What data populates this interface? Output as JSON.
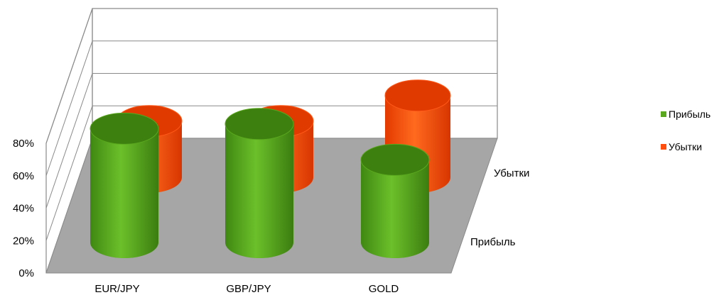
{
  "chart_data": {
    "type": "bar",
    "style": "3d-cylinder",
    "categories": [
      "EUR/JPY",
      "GBP/JPY",
      "GOLD"
    ],
    "series": [
      {
        "name": "Прибыль",
        "values": [
          73,
          76,
          53
        ],
        "color": "#5aa81e"
      },
      {
        "name": "Убытки",
        "values": [
          44,
          44,
          64
        ],
        "color": "#ff4e0e"
      }
    ],
    "y_ticks": [
      "0%",
      "20%",
      "40%",
      "60%",
      "80%"
    ],
    "ylim": [
      0,
      80
    ],
    "depth_labels": [
      "Прибыль",
      "Убытки"
    ],
    "legend_position": "right",
    "grid": true,
    "floor_color": "#a6a6a6"
  }
}
